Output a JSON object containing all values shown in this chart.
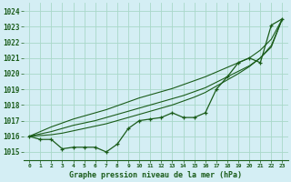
{
  "title": "Graphe pression niveau de la mer (hPa)",
  "background_color": "#d4eef4",
  "grid_color": "#a8d8c8",
  "line_color": "#1a5c1a",
  "xlim": [
    -0.5,
    23.5
  ],
  "ylim": [
    1014.5,
    1024.5
  ],
  "yticks": [
    1015,
    1016,
    1017,
    1018,
    1019,
    1020,
    1021,
    1022,
    1023,
    1024
  ],
  "xtick_labels": [
    "0",
    "1",
    "2",
    "3",
    "4",
    "5",
    "6",
    "7",
    "8",
    "9",
    "10",
    "11",
    "12",
    "13",
    "14",
    "15",
    "16",
    "17",
    "18",
    "19",
    "20",
    "21",
    "22",
    "23"
  ],
  "series_main": [
    1016.0,
    1015.8,
    1015.8,
    1015.2,
    1015.3,
    1015.3,
    1015.3,
    1015.0,
    1015.5,
    1016.5,
    1017.0,
    1017.1,
    1017.2,
    1017.5,
    1017.2,
    1017.2,
    1017.5,
    1019.0,
    1019.8,
    1020.7,
    1021.0,
    1020.7,
    1023.1,
    1023.5
  ],
  "series_trend1": [
    1016.0,
    1016.3,
    1016.6,
    1016.85,
    1017.1,
    1017.3,
    1017.5,
    1017.7,
    1017.95,
    1018.2,
    1018.45,
    1018.65,
    1018.85,
    1019.05,
    1019.3,
    1019.55,
    1019.8,
    1020.1,
    1020.4,
    1020.7,
    1021.0,
    1021.5,
    1022.2,
    1023.5
  ],
  "series_trend2": [
    1016.0,
    1016.15,
    1016.3,
    1016.5,
    1016.7,
    1016.85,
    1017.0,
    1017.2,
    1017.4,
    1017.6,
    1017.8,
    1018.0,
    1018.2,
    1018.4,
    1018.6,
    1018.85,
    1019.1,
    1019.45,
    1019.8,
    1020.15,
    1020.5,
    1021.0,
    1021.7,
    1023.5
  ],
  "series_trend3": [
    1016.0,
    1016.05,
    1016.1,
    1016.2,
    1016.35,
    1016.5,
    1016.65,
    1016.8,
    1017.0,
    1017.2,
    1017.4,
    1017.6,
    1017.8,
    1018.0,
    1018.25,
    1018.5,
    1018.8,
    1019.2,
    1019.6,
    1020.0,
    1020.45,
    1021.0,
    1021.8,
    1023.5
  ]
}
